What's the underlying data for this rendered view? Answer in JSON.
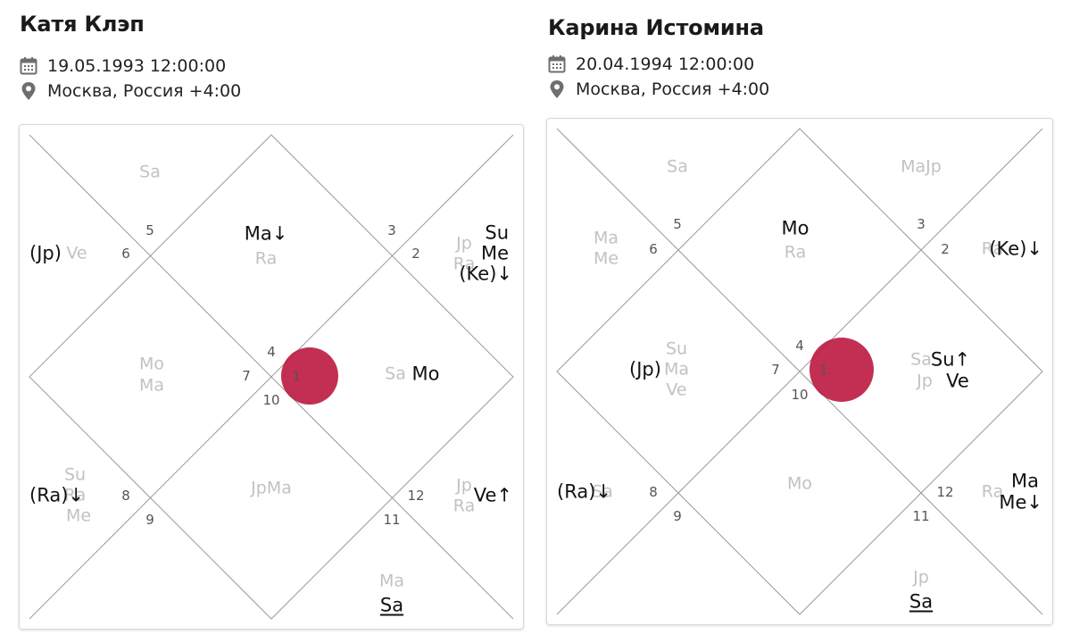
{
  "charts": [
    {
      "name": "Катя Клэп",
      "datetime": "19.05.1993 12:00:00",
      "location": "Москва, Россия +4:00",
      "house_numbers": [
        "1",
        "2",
        "3",
        "4",
        "5",
        "6",
        "7",
        "8",
        "9",
        "10",
        "11",
        "12"
      ],
      "planets": {
        "h1": {
          "grey": [
            "Sa"
          ],
          "black": [
            "Mo"
          ]
        },
        "h2": {
          "grey": [
            "Jp",
            "Ra"
          ],
          "black": [
            "Su",
            "Me",
            "(Ke)↓"
          ]
        },
        "h3": {
          "grey": [
            "Ra"
          ],
          "black": [
            "Ma↓"
          ]
        },
        "h4": {
          "grey": [
            "Sa"
          ],
          "black": []
        },
        "h5": {
          "grey": [
            "Ve"
          ],
          "black": [
            "(Jp)"
          ]
        },
        "h6": {
          "grey": [
            "Mo",
            "Ma"
          ],
          "black": []
        },
        "h7": {
          "grey": [
            "Su",
            "Ra",
            "Me"
          ],
          "black": [
            "(Ra)↓"
          ]
        },
        "h8": {
          "grey": [
            "JpMa"
          ],
          "black": []
        },
        "h9": {
          "grey": [
            "Ma"
          ],
          "black": [
            "Sa"
          ]
        },
        "h10": {
          "grey": [
            "Jp",
            "Ra"
          ],
          "black": [
            "Ve↑"
          ]
        }
      }
    },
    {
      "name": "Карина Истомина",
      "datetime": "20.04.1994 12:00:00",
      "location": "Москва, Россия +4:00",
      "house_numbers": [
        "1",
        "2",
        "3",
        "4",
        "5",
        "6",
        "7",
        "8",
        "9",
        "10",
        "11",
        "12"
      ],
      "planets": {
        "h1": {
          "grey": [
            "Sa",
            "Jp"
          ],
          "black": [
            "Su↑",
            "Ve"
          ]
        },
        "h2": {
          "grey": [
            "Ra"
          ],
          "black": [
            "(Ke)↓"
          ]
        },
        "h3": {
          "grey": [
            "Ra"
          ],
          "black": [
            "Mo"
          ]
        },
        "h4": {
          "grey": [
            "Sa"
          ],
          "black": []
        },
        "h5": {
          "grey": [
            "MaJp"
          ],
          "black": []
        },
        "h6": {
          "grey": [
            "Ma",
            "Me"
          ],
          "black": []
        },
        "h7": {
          "grey": [
            "Su",
            "Ma",
            "Ve"
          ],
          "black": [
            "(Jp)"
          ]
        },
        "h8": {
          "grey": [
            "Sa"
          ],
          "black": [
            "(Ra)↓"
          ]
        },
        "h9": {
          "grey": [
            "Mo"
          ],
          "black": []
        },
        "h10": {
          "grey": [
            "Jp"
          ],
          "black": [
            "Sa"
          ]
        },
        "h11": {
          "grey": [
            "Ra"
          ],
          "black": [
            "Ma",
            "Me↓"
          ]
        }
      }
    }
  ],
  "colors": {
    "ascendant_marker": "#BC1840",
    "grey_planet": "#C2C2C2",
    "black_planet": "#111111",
    "house_number": "#555555",
    "chart_lines": "#9A9A9A"
  },
  "icons": {
    "date": "calendar-icon",
    "location": "location-pin-icon"
  }
}
